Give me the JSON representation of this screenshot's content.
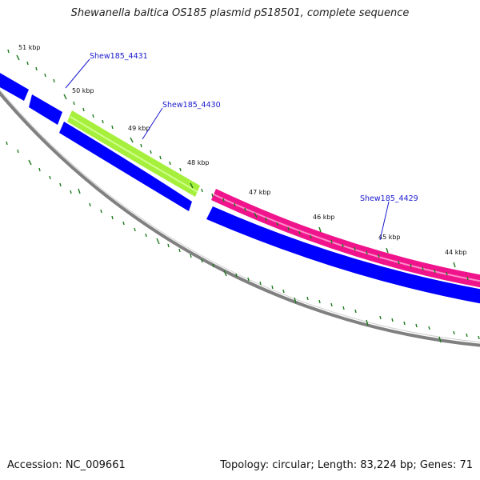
{
  "title": "Shewanella baltica OS185 plasmid pS18501, complete sequence",
  "footer": {
    "accession": "Accession: NC_009661",
    "stats": "Topology: circular; Length: 83,224 bp; Genes: 71"
  },
  "colors": {
    "background": "#ffffff",
    "backbone": "#808080",
    "cds_reverse": "#0000ff",
    "cds_highlight_green": "#a6ef3c",
    "cds_highlight_pink": "#f0148c",
    "tick": "#1f7a1f",
    "gene_label": "#1a1acd"
  },
  "scale": {
    "labels": [
      "51 kbp",
      "50 kbp",
      "49 kbp",
      "48 kbp",
      "47 kbp",
      "46 kbp",
      "45 kbp",
      "44 kbp"
    ]
  },
  "genes": [
    {
      "id": "Shew185_4431",
      "strand": "reverse",
      "color": "blue"
    },
    {
      "id": "Shew185_4430",
      "strand": "forward",
      "color": "green"
    },
    {
      "id": "Shew185_4429",
      "strand": "forward",
      "color": "pink"
    }
  ]
}
